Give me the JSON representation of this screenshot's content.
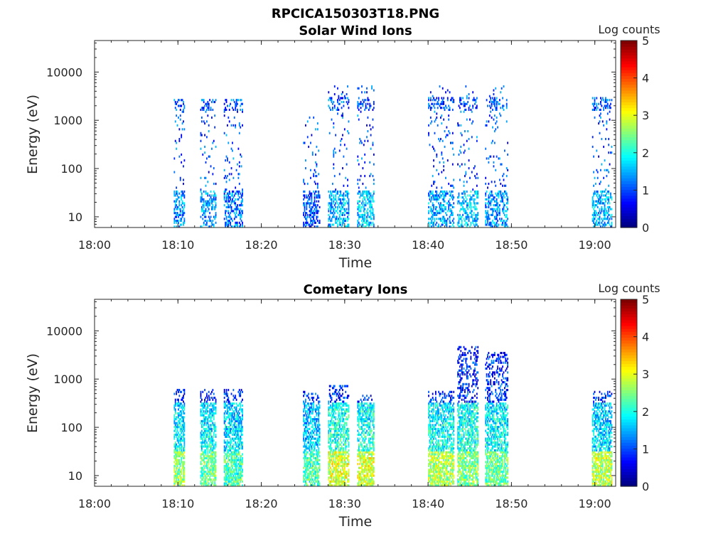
{
  "figure_title": "RPCICA150303T18.PNG",
  "chart_data": [
    {
      "type": "heatmap",
      "title": "Solar Wind Ions",
      "xlabel": "Time",
      "ylabel": "Energy (eV)",
      "y_scale": "log",
      "ylim": [
        6,
        45000
      ],
      "xlim_minutes": [
        1080,
        1142.5
      ],
      "x_tick_labels": [
        "18:00",
        "18:10",
        "18:20",
        "18:30",
        "18:40",
        "18:50",
        "19:00"
      ],
      "x_tick_minutes": [
        1080,
        1090,
        1100,
        1110,
        1120,
        1130,
        1140
      ],
      "y_ticks": [
        10,
        100,
        1000,
        10000
      ],
      "y_tick_labels": [
        "10",
        "100",
        "1000",
        "10000"
      ],
      "colorbar": {
        "label": "Log counts",
        "min": 0,
        "max": 5,
        "ticks": [
          "0",
          "1",
          "2",
          "3",
          "4",
          "5"
        ],
        "colormap": "jet"
      },
      "bursts": [
        {
          "start": "18:09:30",
          "end": "18:10:45",
          "low_energy_level": 1.3,
          "high_energy_level": 1.0,
          "max_energy": 2600
        },
        {
          "start": "18:12:40",
          "end": "18:14:30",
          "low_energy_level": 1.4,
          "high_energy_level": 1.0,
          "max_energy": 2600
        },
        {
          "start": "18:15:30",
          "end": "18:17:40",
          "low_energy_level": 1.2,
          "high_energy_level": 1.0,
          "max_energy": 2600
        },
        {
          "start": "18:25:00",
          "end": "18:27:00",
          "low_energy_level": 1.0,
          "high_energy_level": 1.0,
          "max_energy": 1200
        },
        {
          "start": "18:28:00",
          "end": "18:30:30",
          "low_energy_level": 1.5,
          "high_energy_level": 1.0,
          "max_energy": 5000
        },
        {
          "start": "18:31:30",
          "end": "18:33:30",
          "low_energy_level": 1.6,
          "high_energy_level": 1.0,
          "max_energy": 5000
        },
        {
          "start": "18:40:00",
          "end": "18:43:00",
          "low_energy_level": 1.4,
          "high_energy_level": 1.0,
          "max_energy": 5000
        },
        {
          "start": "18:43:30",
          "end": "18:46:00",
          "low_energy_level": 1.6,
          "high_energy_level": 1.0,
          "max_energy": 5000
        },
        {
          "start": "18:46:50",
          "end": "18:49:30",
          "low_energy_level": 1.3,
          "high_energy_level": 1.0,
          "max_energy": 5000
        },
        {
          "start": "18:59:40",
          "end": "19:02:00",
          "low_energy_level": 1.5,
          "high_energy_level": 1.0,
          "max_energy": 3000
        }
      ]
    },
    {
      "type": "heatmap",
      "title": "Cometary Ions",
      "xlabel": "Time",
      "ylabel": "Energy (eV)",
      "y_scale": "log",
      "ylim": [
        6,
        45000
      ],
      "xlim_minutes": [
        1080,
        1142.5
      ],
      "x_tick_labels": [
        "18:00",
        "18:10",
        "18:20",
        "18:30",
        "18:40",
        "18:50",
        "19:00"
      ],
      "x_tick_minutes": [
        1080,
        1090,
        1100,
        1110,
        1120,
        1130,
        1140
      ],
      "y_ticks": [
        10,
        100,
        1000,
        10000
      ],
      "y_tick_labels": [
        "10",
        "100",
        "1000",
        "10000"
      ],
      "colorbar": {
        "label": "Log counts",
        "min": 0,
        "max": 5,
        "ticks": [
          "0",
          "1",
          "2",
          "3",
          "4",
          "5"
        ],
        "colormap": "jet"
      },
      "bursts": [
        {
          "start": "18:09:30",
          "end": "18:10:45",
          "low_energy_level": 2.6,
          "high_energy_level": 1.6,
          "max_energy": 600
        },
        {
          "start": "18:12:40",
          "end": "18:14:30",
          "low_energy_level": 2.4,
          "high_energy_level": 1.6,
          "max_energy": 600
        },
        {
          "start": "18:15:30",
          "end": "18:17:40",
          "low_energy_level": 2.2,
          "high_energy_level": 1.5,
          "max_energy": 600
        },
        {
          "start": "18:25:00",
          "end": "18:27:00",
          "low_energy_level": 2.2,
          "high_energy_level": 1.4,
          "max_energy": 550
        },
        {
          "start": "18:28:00",
          "end": "18:30:30",
          "low_energy_level": 2.9,
          "high_energy_level": 1.8,
          "max_energy": 700
        },
        {
          "start": "18:31:30",
          "end": "18:33:30",
          "low_energy_level": 2.9,
          "high_energy_level": 1.8,
          "max_energy": 450
        },
        {
          "start": "18:40:00",
          "end": "18:43:00",
          "low_energy_level": 2.7,
          "high_energy_level": 1.7,
          "max_energy": 550
        },
        {
          "start": "18:43:30",
          "end": "18:46:00",
          "low_energy_level": 2.5,
          "high_energy_level": 1.7,
          "max_energy": 4500
        },
        {
          "start": "18:46:50",
          "end": "18:49:30",
          "low_energy_level": 2.4,
          "high_energy_level": 1.6,
          "max_energy": 3400
        },
        {
          "start": "18:59:40",
          "end": "19:02:00",
          "low_energy_level": 2.8,
          "high_energy_level": 1.5,
          "max_energy": 550
        }
      ]
    }
  ]
}
